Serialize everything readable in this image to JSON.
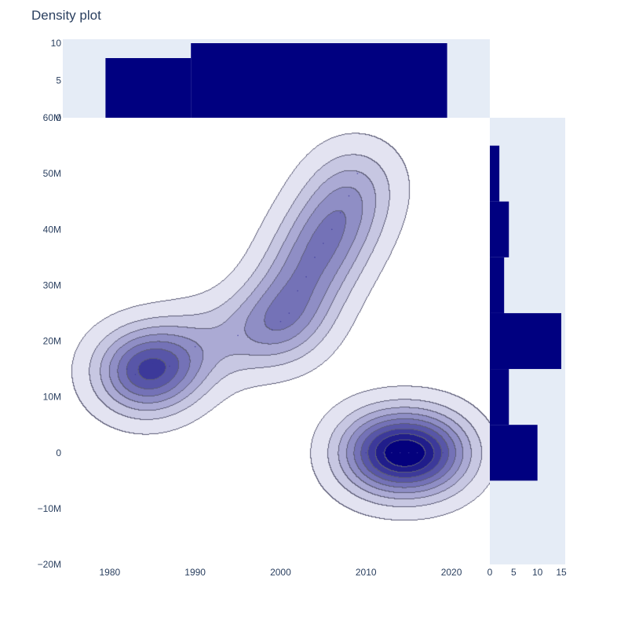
{
  "chart_data": {
    "type": "density-contour-with-marginal-histograms",
    "title": "Density plot",
    "xlabel": "",
    "ylabel": "",
    "colors": {
      "histogram_fill": "#000080",
      "marginal_background": "#e5ecf6",
      "plot_background": "#ffffff",
      "contour_line": "#5d5d78",
      "contour_fills": [
        "#e3e3f1",
        "#c7c7e2",
        "#abaad4",
        "#8f8ec5",
        "#7472b7",
        "#5856a8",
        "#3c399a",
        "#201d8b",
        "#04017d"
      ],
      "text": "#2a3f5f"
    },
    "main": {
      "xlim": [
        1974.5,
        2024.5
      ],
      "ylim": [
        -20000000,
        60000000
      ],
      "x_ticks": [
        1980,
        1990,
        2000,
        2010,
        2020
      ],
      "x_tick_labels": [
        "1980",
        "1990",
        "2000",
        "2010",
        "2020"
      ],
      "y_ticks": [
        -20000000,
        -10000000,
        0,
        10000000,
        20000000,
        30000000,
        40000000,
        50000000,
        60000000
      ],
      "y_tick_labels": [
        "−20M",
        "−10M",
        "0",
        "10M",
        "20M",
        "30M",
        "40M",
        "50M",
        "60M"
      ],
      "contour_levels": 9,
      "points": [
        {
          "x": 1982,
          "y": 15000000
        },
        {
          "x": 1983,
          "y": 14000000
        },
        {
          "x": 1984,
          "y": 13500000
        },
        {
          "x": 1985,
          "y": 16000000
        },
        {
          "x": 1986,
          "y": 15000000
        },
        {
          "x": 1987,
          "y": 15500000
        },
        {
          "x": 1990,
          "y": 19000000
        },
        {
          "x": 1995,
          "y": 21000000
        },
        {
          "x": 1999,
          "y": 22000000
        },
        {
          "x": 2000,
          "y": 23500000
        },
        {
          "x": 2001,
          "y": 25000000
        },
        {
          "x": 2002,
          "y": 29000000
        },
        {
          "x": 2003,
          "y": 31500000
        },
        {
          "x": 2004,
          "y": 35000000
        },
        {
          "x": 2005,
          "y": 37500000
        },
        {
          "x": 2006,
          "y": 40000000
        },
        {
          "x": 2007,
          "y": 43000000
        },
        {
          "x": 2008,
          "y": 46000000
        },
        {
          "x": 2009,
          "y": 50000000
        },
        {
          "x": 2010,
          "y": 0
        },
        {
          "x": 2011,
          "y": 0
        },
        {
          "x": 2012,
          "y": 0
        },
        {
          "x": 2013,
          "y": 0
        },
        {
          "x": 2014,
          "y": 0
        },
        {
          "x": 2015,
          "y": 0
        },
        {
          "x": 2016,
          "y": 0
        },
        {
          "x": 2017,
          "y": 0
        },
        {
          "x": 2018,
          "y": 0
        },
        {
          "x": 2019,
          "y": 0
        }
      ]
    },
    "top_histogram": {
      "axis": "x",
      "ylim": [
        0,
        10
      ],
      "y_ticks": [
        0,
        5,
        10
      ],
      "y_tick_labels": [
        "0",
        "5",
        "10"
      ],
      "bins": [
        {
          "x0": 1979.5,
          "x1": 1989.5,
          "count": 8
        },
        {
          "x0": 1989.5,
          "x1": 2019.5,
          "count": 10
        }
      ]
    },
    "right_histogram": {
      "axis": "y",
      "xlim": [
        0,
        15
      ],
      "x_ticks": [
        0,
        5,
        10,
        15
      ],
      "x_tick_labels": [
        "0",
        "5",
        "10",
        "15"
      ],
      "bins": [
        {
          "y0": -5000000,
          "y1": 5000000,
          "count": 10
        },
        {
          "y0": 5000000,
          "y1": 15000000,
          "count": 4
        },
        {
          "y0": 15000000,
          "y1": 25000000,
          "count": 15
        },
        {
          "y0": 25000000,
          "y1": 35000000,
          "count": 3
        },
        {
          "y0": 35000000,
          "y1": 45000000,
          "count": 4
        },
        {
          "y0": 45000000,
          "y1": 55000000,
          "count": 2
        }
      ]
    }
  }
}
